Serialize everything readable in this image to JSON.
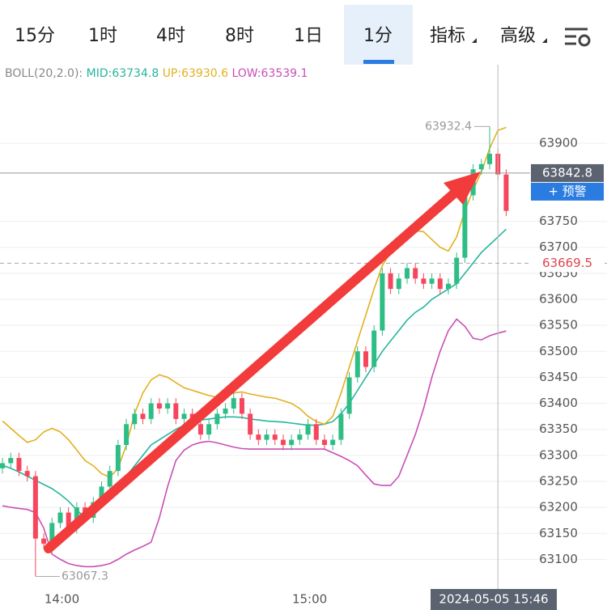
{
  "tabs": [
    "15分",
    "1时",
    "4时",
    "8时",
    "1日",
    "1分",
    "指标",
    "高级"
  ],
  "active_tab": 5,
  "chart_data": {
    "type": "candlestick",
    "indicator": "BOLL(20,2.0):",
    "open": [
      63275,
      63285,
      63295,
      63270,
      63260,
      63140,
      63130,
      63170,
      63190,
      63160,
      63200,
      63180,
      63210,
      63240,
      63270,
      63320,
      63360,
      63380,
      63370,
      63400,
      63390,
      63400,
      63370,
      63380,
      63360,
      63340,
      63360,
      63380,
      63390,
      63410,
      63380,
      63340,
      63330,
      63340,
      63330,
      63320,
      63330,
      63340,
      63360,
      63330,
      63320,
      63330,
      63380,
      63450,
      63500,
      63470,
      63540,
      63650,
      63620,
      63640,
      63660,
      63640,
      63630,
      63640,
      63620,
      63630,
      63680,
      63800,
      63850,
      63860,
      63880,
      63840
    ],
    "high": [
      63295,
      63305,
      63305,
      63280,
      63270,
      63150,
      63180,
      63200,
      63200,
      63210,
      63210,
      63220,
      63250,
      63280,
      63330,
      63370,
      63390,
      63390,
      63410,
      63410,
      63410,
      63410,
      63390,
      63390,
      63370,
      63370,
      63390,
      63400,
      63420,
      63420,
      63390,
      63350,
      63350,
      63350,
      63340,
      63340,
      63350,
      63370,
      63370,
      63340,
      63340,
      63390,
      63460,
      63510,
      63510,
      63550,
      63660,
      63660,
      63650,
      63670,
      63670,
      63650,
      63650,
      63650,
      63640,
      63690,
      63810,
      63860,
      63870,
      63932.4,
      63890,
      63850
    ],
    "low": [
      63265,
      63275,
      63260,
      63250,
      63067.3,
      63120,
      63120,
      63160,
      63150,
      63150,
      63170,
      63170,
      63200,
      63230,
      63260,
      63310,
      63350,
      63360,
      63360,
      63380,
      63380,
      63360,
      63360,
      63350,
      63330,
      63330,
      63350,
      63370,
      63380,
      63370,
      63330,
      63320,
      63320,
      63320,
      63310,
      63310,
      63320,
      63330,
      63320,
      63310,
      63310,
      63320,
      63370,
      63440,
      63460,
      63460,
      63530,
      63610,
      63610,
      63630,
      63630,
      63620,
      63620,
      63610,
      63610,
      63620,
      63670,
      63790,
      63840,
      63850,
      63830,
      63760
    ],
    "close": [
      63285,
      63295,
      63270,
      63260,
      63140,
      63130,
      63170,
      63190,
      63160,
      63200,
      63180,
      63210,
      63240,
      63270,
      63320,
      63360,
      63380,
      63370,
      63400,
      63390,
      63400,
      63370,
      63380,
      63360,
      63340,
      63360,
      63380,
      63390,
      63410,
      63380,
      63340,
      63330,
      63340,
      63330,
      63320,
      63330,
      63340,
      63360,
      63330,
      63320,
      63330,
      63380,
      63450,
      63500,
      63470,
      63540,
      63650,
      63620,
      63640,
      63660,
      63640,
      63630,
      63640,
      63620,
      63630,
      63680,
      63800,
      63850,
      63860,
      63880,
      63840,
      63770
    ],
    "up_color": "#2ebd85",
    "down_color": "#f6465d",
    "series": [
      {
        "name": "MID:",
        "color": "#26b5a0",
        "values": [
          63281,
          63275,
          63268,
          63260,
          63252,
          63244,
          63236,
          63225,
          63212,
          63195,
          63180,
          63185,
          63200,
          63220,
          63240,
          63260,
          63280,
          63300,
          63320,
          63330,
          63340,
          63350,
          63358,
          63364,
          63368,
          63370,
          63372,
          63374,
          63374,
          63373,
          63370,
          63368,
          63366,
          63365,
          63364,
          63362,
          63360,
          63358,
          63358,
          63360,
          63365,
          63380,
          63400,
          63425,
          63450,
          63475,
          63500,
          63520,
          63540,
          63560,
          63575,
          63585,
          63600,
          63610,
          63620,
          63630,
          63650,
          63670,
          63690,
          63705,
          63720,
          63734.8
        ]
      },
      {
        "name": "UP:",
        "color": "#e3b020",
        "values": [
          63366,
          63352,
          63338,
          63325,
          63330,
          63345,
          63352,
          63345,
          63330,
          63310,
          63290,
          63280,
          63265,
          63258,
          63275,
          63320,
          63380,
          63420,
          63445,
          63455,
          63450,
          63440,
          63430,
          63425,
          63420,
          63415,
          63412,
          63414,
          63420,
          63422,
          63418,
          63415,
          63412,
          63410,
          63405,
          63400,
          63390,
          63375,
          63365,
          63360,
          63375,
          63420,
          63470,
          63520,
          63570,
          63620,
          63665,
          63690,
          63710,
          63725,
          63732,
          63730,
          63715,
          63700,
          63693,
          63720,
          63770,
          63810,
          63845,
          63890,
          63925,
          63930.6
        ]
      },
      {
        "name": "LOW:",
        "color": "#c94fb8",
        "values": [
          63203,
          63200,
          63198,
          63196,
          63190,
          63160,
          63110,
          63100,
          63092,
          63088,
          63086,
          63086,
          63088,
          63092,
          63100,
          63110,
          63118,
          63125,
          63133,
          63180,
          63240,
          63290,
          63310,
          63320,
          63325,
          63327,
          63324,
          63320,
          63316,
          63313,
          63312,
          63312,
          63312,
          63312,
          63312,
          63312,
          63312,
          63312,
          63312,
          63312,
          63305,
          63298,
          63290,
          63280,
          63262,
          63245,
          63242,
          63242,
          63260,
          63300,
          63340,
          63390,
          63450,
          63500,
          63540,
          63562,
          63548,
          63525,
          63522,
          63530,
          63535,
          63539.1
        ]
      }
    ],
    "xlim": [
      -0.3,
      63.9
    ],
    "xticks": [
      {
        "value": 7.2,
        "label": "14:00"
      },
      {
        "value": 37.2,
        "label": "15:00"
      }
    ],
    "ylim": [
      63040,
      64020
    ],
    "yticks": [
      63100,
      63150,
      63200,
      63250,
      63300,
      63350,
      63400,
      63450,
      63500,
      63550,
      63600,
      63650,
      63700,
      63750,
      63900
    ],
    "grid": true,
    "last_price": 63842.8,
    "alert_button": "+ 预警",
    "alert_line": 63669.5,
    "crosshair": {
      "x": 60,
      "label": "2024-05-05 15:46"
    }
  }
}
